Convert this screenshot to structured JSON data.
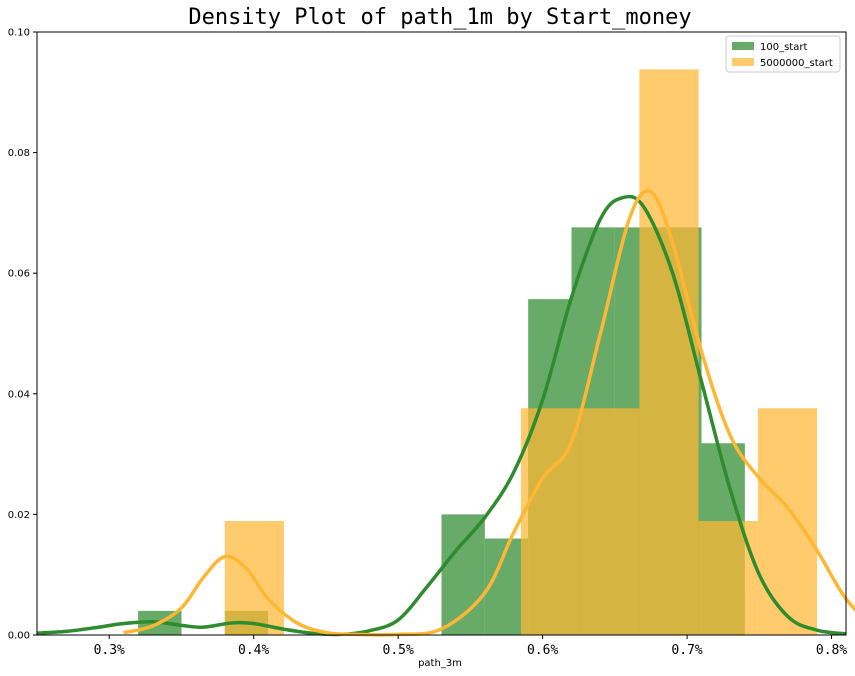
{
  "chart_data": {
    "type": "histogram-density",
    "title": "Density Plot of path_1m by Start_money",
    "xlabel": "path_3m",
    "ylabel": "",
    "xlim": [
      0.25,
      0.81
    ],
    "ylim": [
      0,
      0.1
    ],
    "x_ticks": [
      {
        "value": 0.3,
        "label": "0.3%"
      },
      {
        "value": 0.4,
        "label": "0.4%"
      },
      {
        "value": 0.5,
        "label": "0.5%"
      },
      {
        "value": 0.6,
        "label": "0.6%"
      },
      {
        "value": 0.7,
        "label": "0.7%"
      },
      {
        "value": 0.8,
        "label": "0.8%"
      }
    ],
    "y_ticks": [
      {
        "value": 0.0,
        "label": "0.00"
      },
      {
        "value": 0.02,
        "label": "0.02"
      },
      {
        "value": 0.04,
        "label": "0.04"
      },
      {
        "value": 0.06,
        "label": "0.06"
      },
      {
        "value": 0.08,
        "label": "0.08"
      },
      {
        "value": 0.1,
        "label": "0.10"
      }
    ],
    "legend_position": "top-right",
    "grid": false,
    "series": [
      {
        "name": "100_start",
        "color": "#2e8b2e",
        "bars": [
          {
            "x0": 0.32,
            "x1": 0.35,
            "value": 0.004
          },
          {
            "x0": 0.38,
            "x1": 0.41,
            "value": 0.004
          },
          {
            "x0": 0.53,
            "x1": 0.56,
            "value": 0.02
          },
          {
            "x0": 0.56,
            "x1": 0.59,
            "value": 0.016
          },
          {
            "x0": 0.59,
            "x1": 0.62,
            "value": 0.0557
          },
          {
            "x0": 0.62,
            "x1": 0.65,
            "value": 0.0676
          },
          {
            "x0": 0.65,
            "x1": 0.68,
            "value": 0.0676
          },
          {
            "x0": 0.68,
            "x1": 0.71,
            "value": 0.0676
          },
          {
            "x0": 0.71,
            "x1": 0.74,
            "value": 0.0318
          }
        ],
        "kde": [
          [
            0.25,
            0.0003
          ],
          [
            0.27,
            0.0006
          ],
          [
            0.29,
            0.0012
          ],
          [
            0.31,
            0.0019
          ],
          [
            0.33,
            0.0022
          ],
          [
            0.35,
            0.0016
          ],
          [
            0.365,
            0.0013
          ],
          [
            0.385,
            0.002
          ],
          [
            0.4,
            0.0019
          ],
          [
            0.42,
            0.001
          ],
          [
            0.44,
            0.0003
          ],
          [
            0.46,
            0.0001
          ],
          [
            0.48,
            0.0007
          ],
          [
            0.5,
            0.0025
          ],
          [
            0.52,
            0.008
          ],
          [
            0.54,
            0.014
          ],
          [
            0.56,
            0.0195
          ],
          [
            0.58,
            0.027
          ],
          [
            0.6,
            0.039
          ],
          [
            0.62,
            0.056
          ],
          [
            0.64,
            0.069
          ],
          [
            0.655,
            0.0725
          ],
          [
            0.67,
            0.071
          ],
          [
            0.69,
            0.06
          ],
          [
            0.71,
            0.042
          ],
          [
            0.73,
            0.024
          ],
          [
            0.75,
            0.01
          ],
          [
            0.77,
            0.003
          ],
          [
            0.79,
            0.0008
          ],
          [
            0.81,
            0.0002
          ]
        ]
      },
      {
        "name": "5000000_start",
        "color": "#ffb733",
        "bars": [
          {
            "x0": 0.38,
            "x1": 0.421,
            "value": 0.0189
          },
          {
            "x0": 0.585,
            "x1": 0.626,
            "value": 0.0376
          },
          {
            "x0": 0.626,
            "x1": 0.667,
            "value": 0.0376
          },
          {
            "x0": 0.667,
            "x1": 0.708,
            "value": 0.0938
          },
          {
            "x0": 0.708,
            "x1": 0.749,
            "value": 0.0189
          },
          {
            "x0": 0.749,
            "x1": 0.79,
            "value": 0.0376
          }
        ],
        "kde": [
          [
            0.31,
            0.0004
          ],
          [
            0.33,
            0.0015
          ],
          [
            0.35,
            0.0045
          ],
          [
            0.365,
            0.0095
          ],
          [
            0.38,
            0.013
          ],
          [
            0.395,
            0.011
          ],
          [
            0.41,
            0.006
          ],
          [
            0.43,
            0.002
          ],
          [
            0.45,
            0.0004
          ],
          [
            0.47,
            0.0001
          ],
          [
            0.5,
            0.0001
          ],
          [
            0.53,
            0.001
          ],
          [
            0.56,
            0.007
          ],
          [
            0.58,
            0.017
          ],
          [
            0.6,
            0.026
          ],
          [
            0.62,
            0.032
          ],
          [
            0.64,
            0.05
          ],
          [
            0.66,
            0.069
          ],
          [
            0.675,
            0.0735
          ],
          [
            0.69,
            0.065
          ],
          [
            0.71,
            0.047
          ],
          [
            0.73,
            0.033
          ],
          [
            0.75,
            0.026
          ],
          [
            0.77,
            0.021
          ],
          [
            0.79,
            0.014
          ],
          [
            0.81,
            0.006
          ],
          [
            0.83,
            0.0015
          ],
          [
            0.85,
            0.0003
          ]
        ]
      }
    ]
  }
}
